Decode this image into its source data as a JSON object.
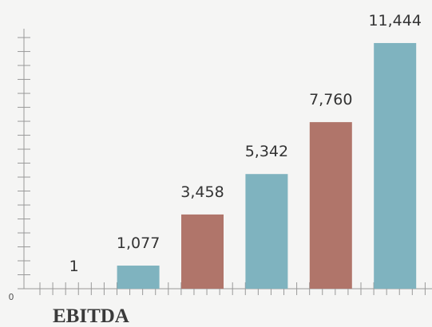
{
  "chart_data": {
    "type": "bar",
    "title": "EBITDA",
    "categories": [
      null,
      null,
      null,
      null,
      null,
      null
    ],
    "values": [
      1,
      1077,
      3458,
      5342,
      7760,
      11444
    ],
    "value_labels": [
      "1",
      "1,077",
      "3,458",
      "5,342",
      "7,760",
      "11,444"
    ],
    "colors": [
      "#b0756a",
      "#7fb3bf",
      "#b0756a",
      "#7fb3bf",
      "#b0756a",
      "#7fb3bf"
    ],
    "ylim": [
      0,
      12000
    ],
    "yticks": [
      0
    ],
    "minor_yticks": [
      650,
      1300,
      1950,
      2600,
      3250,
      3900,
      4550,
      5200,
      5850,
      6500,
      7150,
      7800,
      8450,
      9100,
      9750,
      10400,
      11050,
      11700
    ]
  }
}
